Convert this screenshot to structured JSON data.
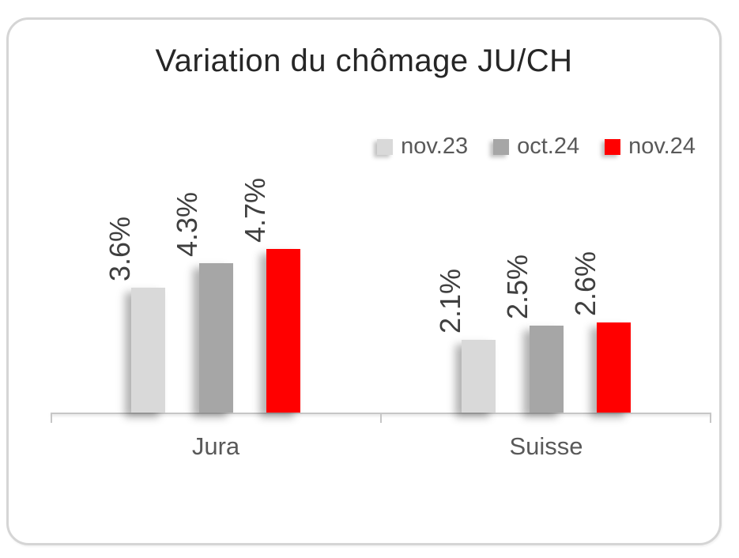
{
  "chart_data": {
    "type": "bar",
    "title": "Variation du chômage JU/CH",
    "categories": [
      "Jura",
      "Suisse"
    ],
    "series": [
      {
        "name": "nov.23",
        "color": "#d9d9d9",
        "values": [
          3.6,
          2.1
        ],
        "labels": [
          "3.6%",
          "2.1%"
        ]
      },
      {
        "name": "oct.24",
        "color": "#a6a6a6",
        "values": [
          4.3,
          2.5
        ],
        "labels": [
          "4.3%",
          "2.5%"
        ]
      },
      {
        "name": "nov.24",
        "color": "#ff0000",
        "values": [
          4.7,
          2.6
        ],
        "labels": [
          "4.7%",
          "2.6%"
        ]
      }
    ],
    "value_suffix": "%",
    "xlabel": "",
    "ylabel": "",
    "ylim": [
      0,
      5
    ],
    "gridlines": false,
    "y_axis_visible": false,
    "legend_position": "top-right",
    "data_labels": {
      "position": "outside-end",
      "rotation": -90
    },
    "colors": {
      "title_text": "#262626",
      "axis_line": "#c6c6c6",
      "category_text": "#595959",
      "legend_text": "#595959",
      "data_label_text": "#3f3f3f",
      "card_border": "#d5d5d5",
      "background": "#ffffff"
    }
  }
}
